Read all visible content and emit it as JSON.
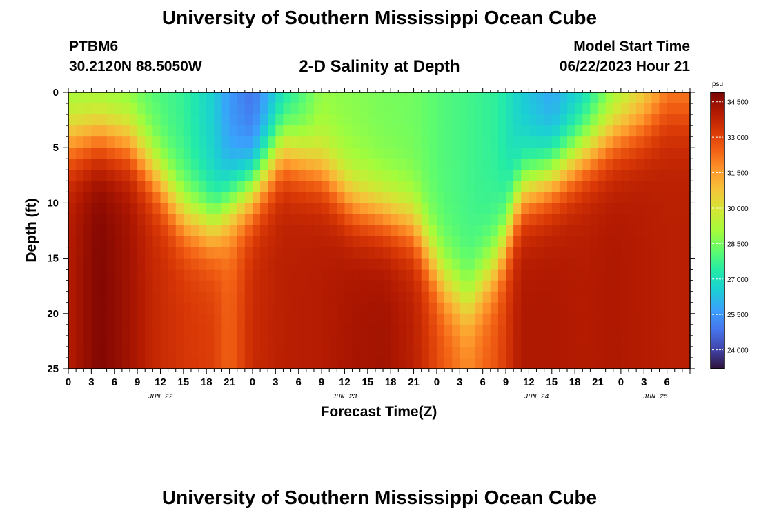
{
  "header": {
    "title": "University of Southern Mississippi Ocean Cube",
    "station_id": "PTBM6",
    "coordinates": "30.2120N  88.5050W",
    "subtitle": "2-D Salinity at Depth",
    "model_start_label": "Model Start Time",
    "model_start_value": "06/22/2023 Hour 21"
  },
  "footer": {
    "title": "University of Southern Mississippi Ocean Cube"
  },
  "colors": {
    "colormap": [
      "#30123b",
      "#4145ab",
      "#4675ed",
      "#39a2fc",
      "#1bcfd4",
      "#24eca6",
      "#61fc6c",
      "#a4fc3b",
      "#d1e834",
      "#f3c63a",
      "#fe9b2d",
      "#f36315",
      "#d93806",
      "#b11901",
      "#7a0402"
    ]
  },
  "chart_data": {
    "type": "heatmap",
    "title": "2-D Salinity at Depth",
    "xlabel": "Forecast Time(Z)",
    "ylabel": "Depth (ft)",
    "x_range_hours": [
      0,
      81
    ],
    "y_range_ft": [
      0,
      25
    ],
    "y_inverted": true,
    "x_tick_labels": [
      "0",
      "3",
      "6",
      "9",
      "12",
      "15",
      "18",
      "21",
      "0",
      "3",
      "6",
      "9",
      "12",
      "15",
      "18",
      "21",
      "0",
      "3",
      "6",
      "9",
      "12",
      "15",
      "18",
      "21",
      "0",
      "3",
      "6"
    ],
    "x_tick_hours": [
      0,
      3,
      6,
      9,
      12,
      15,
      18,
      21,
      24,
      27,
      30,
      33,
      36,
      39,
      42,
      45,
      48,
      51,
      54,
      57,
      60,
      63,
      66,
      69,
      72,
      75,
      78
    ],
    "y_tick_labels": [
      "0",
      "5",
      "10",
      "15",
      "20",
      "25"
    ],
    "y_tick_values": [
      0,
      5,
      10,
      15,
      20,
      25
    ],
    "day_labels": [
      {
        "label": "JUN 22",
        "hour": 12
      },
      {
        "label": "JUN 23",
        "hour": 36
      },
      {
        "label": "JUN 24",
        "hour": 61
      },
      {
        "label": "JUN 25",
        "hour": 76.5
      }
    ],
    "colorbar": {
      "unit": "psu",
      "range": [
        23.2,
        34.9
      ],
      "tick_labels": [
        "34.500",
        "33.000",
        "31.500",
        "30.000",
        "28.500",
        "27.000",
        "25.500",
        "24.000"
      ],
      "tick_values": [
        34.5,
        33.0,
        31.5,
        30.0,
        28.5,
        27.0,
        25.5,
        24.0
      ]
    },
    "grid": {
      "time_step_hours": 1,
      "depth_levels": 25
    },
    "profiles": [
      {
        "hour": 0,
        "surface": 28.8,
        "bottom": 34.0,
        "halocline_ft": 4.5
      },
      {
        "hour": 4,
        "surface": 28.6,
        "bottom": 34.8,
        "halocline_ft": 4.0
      },
      {
        "hour": 8,
        "surface": 28.4,
        "bottom": 34.3,
        "halocline_ft": 4.5
      },
      {
        "hour": 11,
        "surface": 28.0,
        "bottom": 33.7,
        "halocline_ft": 7.0
      },
      {
        "hour": 15,
        "surface": 27.6,
        "bottom": 33.3,
        "halocline_ft": 11.0
      },
      {
        "hour": 19,
        "surface": 26.5,
        "bottom": 33.1,
        "halocline_ft": 12.0
      },
      {
        "hour": 21,
        "surface": 25.5,
        "bottom": 32.4,
        "halocline_ft": 10.0
      },
      {
        "hour": 24,
        "surface": 24.8,
        "bottom": 33.6,
        "halocline_ft": 8.5
      },
      {
        "hour": 28,
        "surface": 26.8,
        "bottom": 33.9,
        "halocline_ft": 5.0
      },
      {
        "hour": 33,
        "surface": 28.8,
        "bottom": 34.0,
        "halocline_ft": 7.0
      },
      {
        "hour": 37,
        "surface": 28.7,
        "bottom": 34.2,
        "halocline_ft": 10.0
      },
      {
        "hour": 41,
        "surface": 28.5,
        "bottom": 34.3,
        "halocline_ft": 11.0
      },
      {
        "hour": 45,
        "surface": 28.4,
        "bottom": 33.9,
        "halocline_ft": 12.0
      },
      {
        "hour": 49,
        "surface": 28.0,
        "bottom": 32.6,
        "halocline_ft": 17.0
      },
      {
        "hour": 52,
        "surface": 27.8,
        "bottom": 31.9,
        "halocline_ft": 19.0
      },
      {
        "hour": 56,
        "surface": 27.5,
        "bottom": 32.8,
        "halocline_ft": 15.0
      },
      {
        "hour": 59,
        "surface": 26.5,
        "bottom": 34.1,
        "halocline_ft": 9.0
      },
      {
        "hour": 63,
        "surface": 25.7,
        "bottom": 34.1,
        "halocline_ft": 7.5
      },
      {
        "hour": 67,
        "surface": 26.6,
        "bottom": 34.0,
        "halocline_ft": 5.5
      },
      {
        "hour": 71,
        "surface": 28.6,
        "bottom": 34.1,
        "halocline_ft": 4.0
      },
      {
        "hour": 75,
        "surface": 30.0,
        "bottom": 34.0,
        "halocline_ft": 3.0
      },
      {
        "hour": 78,
        "surface": 31.5,
        "bottom": 33.9,
        "halocline_ft": 2.0
      }
    ]
  }
}
